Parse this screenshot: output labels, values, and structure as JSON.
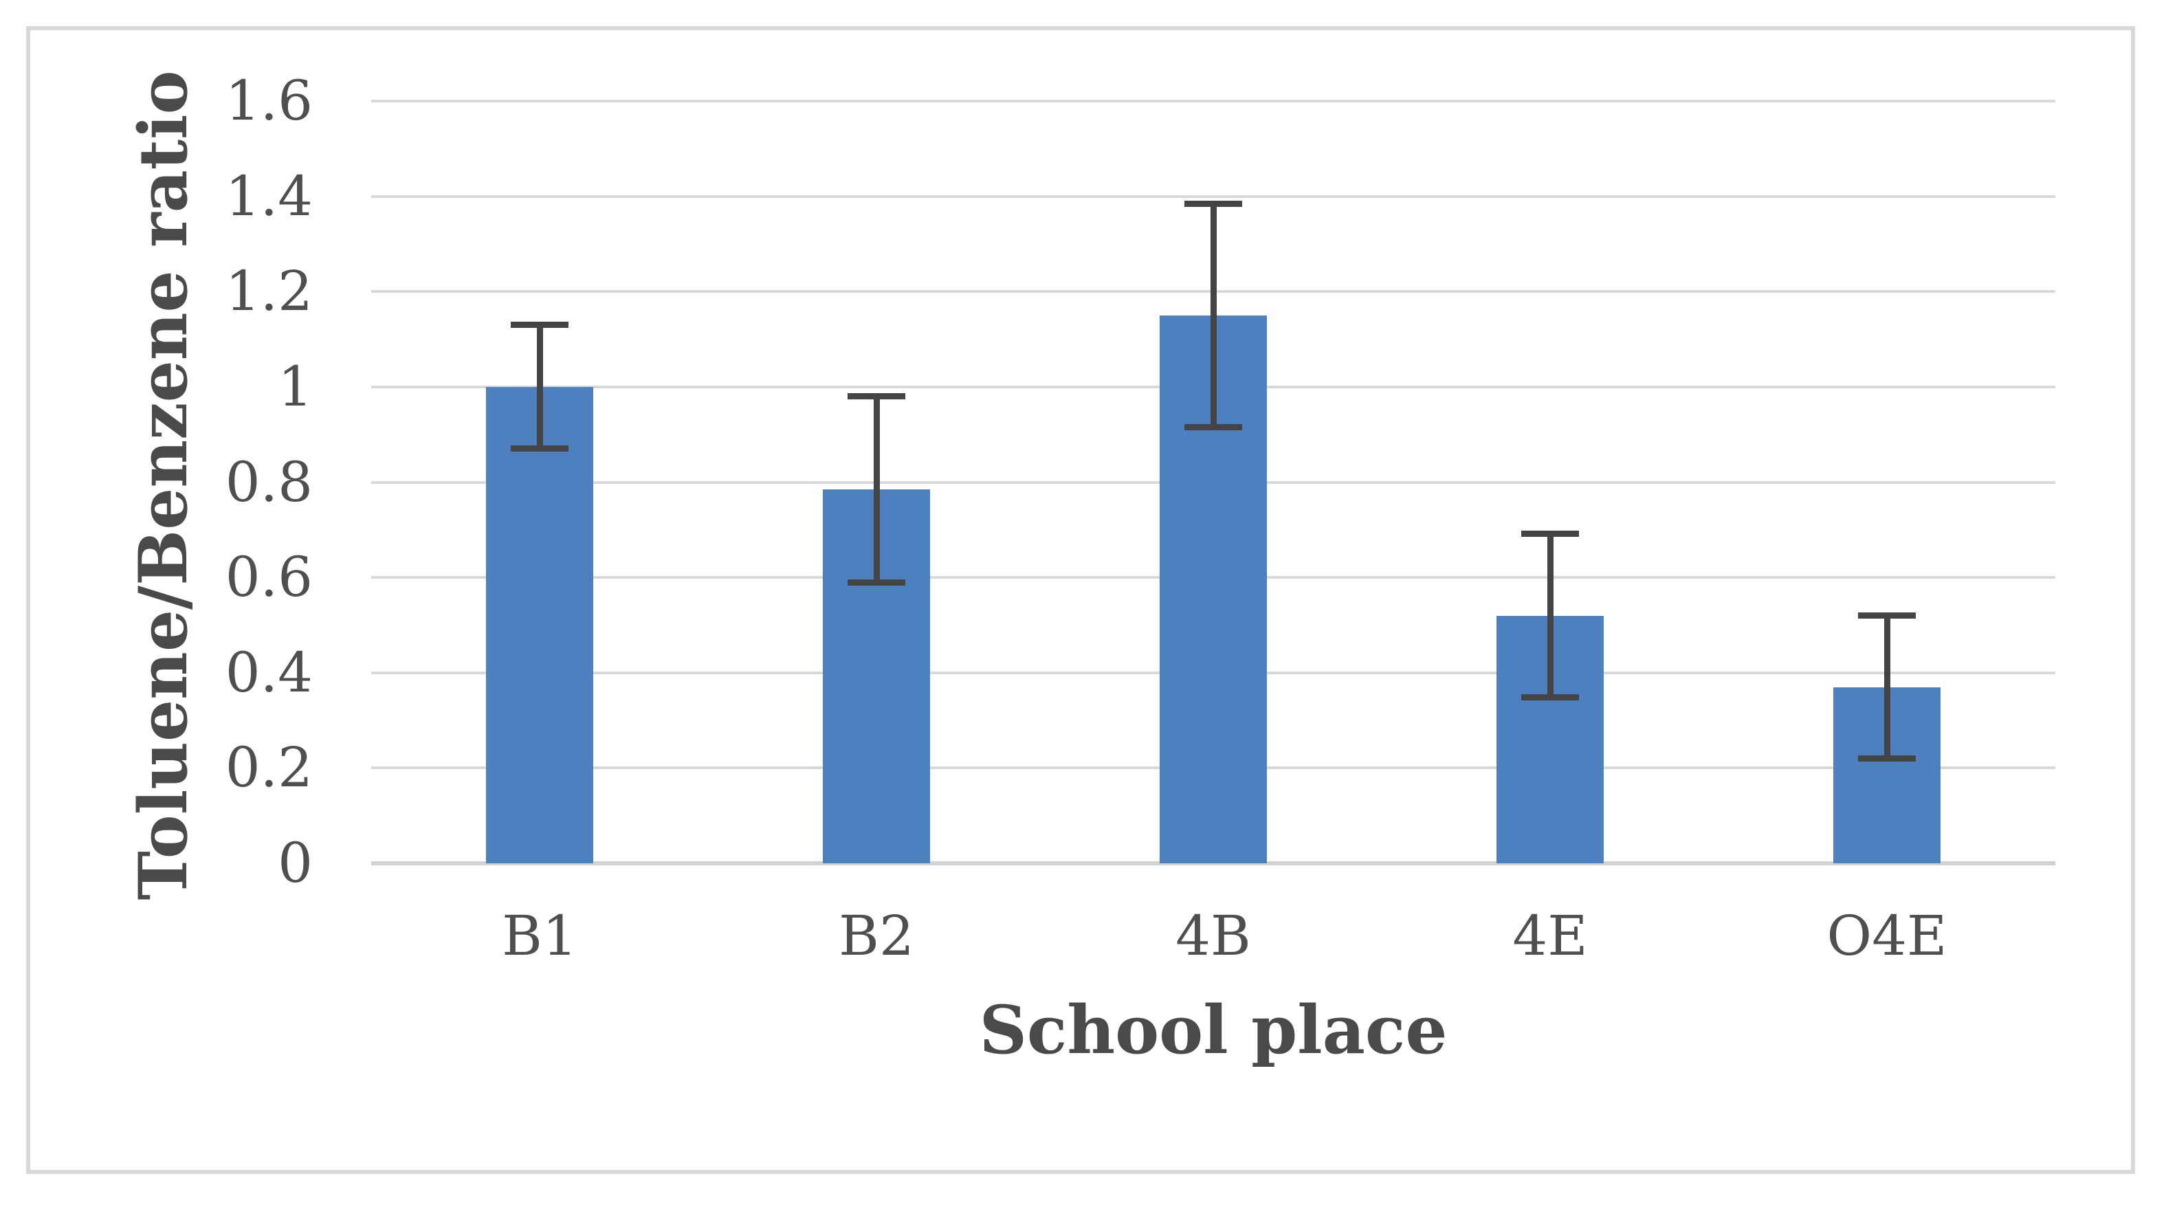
{
  "figure": {
    "background_color": "#ffffff",
    "border_color": "#D9D9D9"
  },
  "chart_data": {
    "type": "bar",
    "title": "",
    "categories": [
      "B1",
      "B2",
      "4B",
      "4E",
      "O4E"
    ],
    "values": [
      1.0,
      0.785,
      1.15,
      0.52,
      0.37
    ],
    "error_bars": [
      0.13,
      0.195,
      0.235,
      0.172,
      0.15
    ],
    "xlabel": "School place",
    "ylabel": "Toluene/Benzene ratio",
    "ylim": [
      0,
      1.6
    ],
    "ytick_labels": [
      "0",
      "0.2",
      "0.4",
      "0.6",
      "0.8",
      "1",
      "1.2",
      "1.4",
      "1.6"
    ],
    "grid": "horizontal",
    "legend": "none",
    "bar_color": "#4C80BE",
    "error_bar_color": "#444444",
    "gridline_color": "#D9D9D9",
    "axis_line_color": "#D2D2D2",
    "text_color": "#4F4F4F"
  }
}
